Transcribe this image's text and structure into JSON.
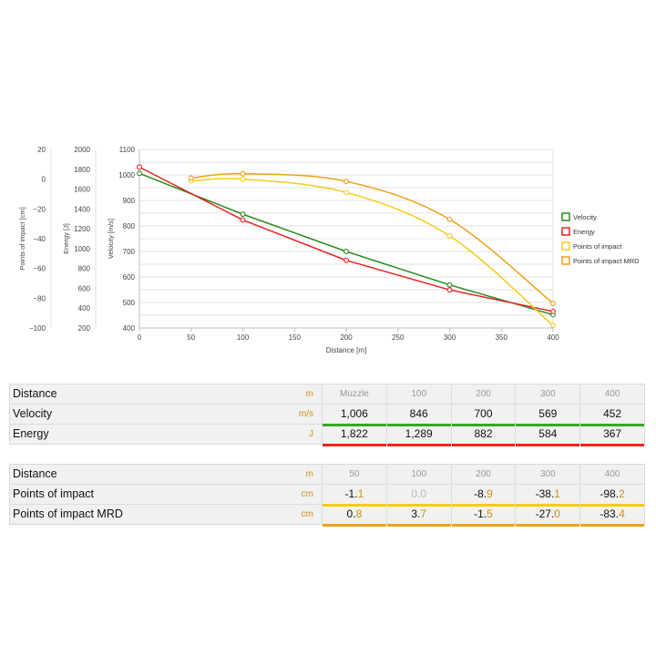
{
  "chart_data": {
    "type": "line",
    "x": [
      0,
      50,
      100,
      200,
      300,
      400
    ],
    "xlabel": "Distance [m]",
    "xlim": [
      0,
      400
    ],
    "xticks": [
      0,
      50,
      100,
      150,
      200,
      250,
      300,
      350,
      400
    ],
    "axes": [
      {
        "id": "poi",
        "label": "Points of impact [cm]",
        "range": [
          -100,
          20
        ],
        "ticks": [
          20,
          0,
          -20,
          -40,
          -60,
          -80,
          -100
        ]
      },
      {
        "id": "energy",
        "label": "Energy [J]",
        "range": [
          200,
          2000
        ],
        "ticks": [
          2000,
          1800,
          1600,
          1400,
          1200,
          1000,
          800,
          600,
          400,
          200
        ]
      },
      {
        "id": "velocity",
        "label": "Velocity [m/s]",
        "range": [
          400,
          1100
        ],
        "ticks": [
          1100,
          1000,
          900,
          800,
          700,
          600,
          500,
          400
        ]
      }
    ],
    "series": [
      {
        "name": "Velocity",
        "axis": "velocity",
        "color": "#2a8a1e",
        "points": [
          [
            0,
            1006
          ],
          [
            100,
            846
          ],
          [
            200,
            700
          ],
          [
            300,
            569
          ],
          [
            400,
            452
          ]
        ]
      },
      {
        "name": "Energy",
        "axis": "energy",
        "color": "#e8231f",
        "points": [
          [
            0,
            1822
          ],
          [
            100,
            1289
          ],
          [
            200,
            882
          ],
          [
            300,
            584
          ],
          [
            400,
            367
          ]
        ]
      },
      {
        "name": "Points of impact",
        "axis": "poi",
        "color": "#f2cc18",
        "points": [
          [
            50,
            -1.1
          ],
          [
            100,
            0.0
          ],
          [
            200,
            -8.9
          ],
          [
            300,
            -38.1
          ],
          [
            400,
            -98.2
          ]
        ]
      },
      {
        "name": "Points of impact MRD",
        "axis": "poi",
        "color": "#eea019",
        "points": [
          [
            50,
            0.8
          ],
          [
            100,
            3.7
          ],
          [
            200,
            -1.5
          ],
          [
            300,
            -27.0
          ],
          [
            400,
            -83.4
          ]
        ]
      }
    ],
    "legend": "right",
    "grid": true
  },
  "table1": {
    "header": {
      "label": "Distance",
      "unit": "m",
      "cells": [
        "Muzzle",
        "100",
        "200",
        "300",
        "400"
      ]
    },
    "rows": [
      {
        "label": "Velocity",
        "unit": "m/s",
        "color": "#3aa52a",
        "cells": [
          [
            "1,006",
            ""
          ],
          [
            "846",
            ""
          ],
          [
            "700",
            ""
          ],
          [
            "569",
            ""
          ],
          [
            "452",
            ""
          ]
        ]
      },
      {
        "label": "Energy",
        "unit": "J",
        "color": "#e8231f",
        "cells": [
          [
            "1,822",
            ""
          ],
          [
            "1,289",
            ""
          ],
          [
            "882",
            ""
          ],
          [
            "584",
            ""
          ],
          [
            "367",
            ""
          ]
        ]
      }
    ]
  },
  "table2": {
    "header": {
      "label": "Distance",
      "unit": "m",
      "cells": [
        "50",
        "100",
        "200",
        "300",
        "400"
      ]
    },
    "rows": [
      {
        "label": "Points of impact",
        "unit": "cm",
        "color": "#f2cc18",
        "cells": [
          [
            "-1.",
            "1"
          ],
          [
            "0.",
            "0"
          ],
          [
            "-8.",
            "9"
          ],
          [
            "-38.",
            "1"
          ],
          [
            "-98.",
            "2"
          ]
        ],
        "dim": [
          false,
          true,
          false,
          false,
          false
        ]
      },
      {
        "label": "Points of impact MRD",
        "unit": "cm",
        "color": "#eea019",
        "cells": [
          [
            "0.",
            "8"
          ],
          [
            "3.",
            "7"
          ],
          [
            "-1.",
            "5"
          ],
          [
            "-27.",
            "0"
          ],
          [
            "-83.",
            "4"
          ]
        ],
        "dim": [
          false,
          false,
          false,
          false,
          false
        ]
      }
    ]
  }
}
